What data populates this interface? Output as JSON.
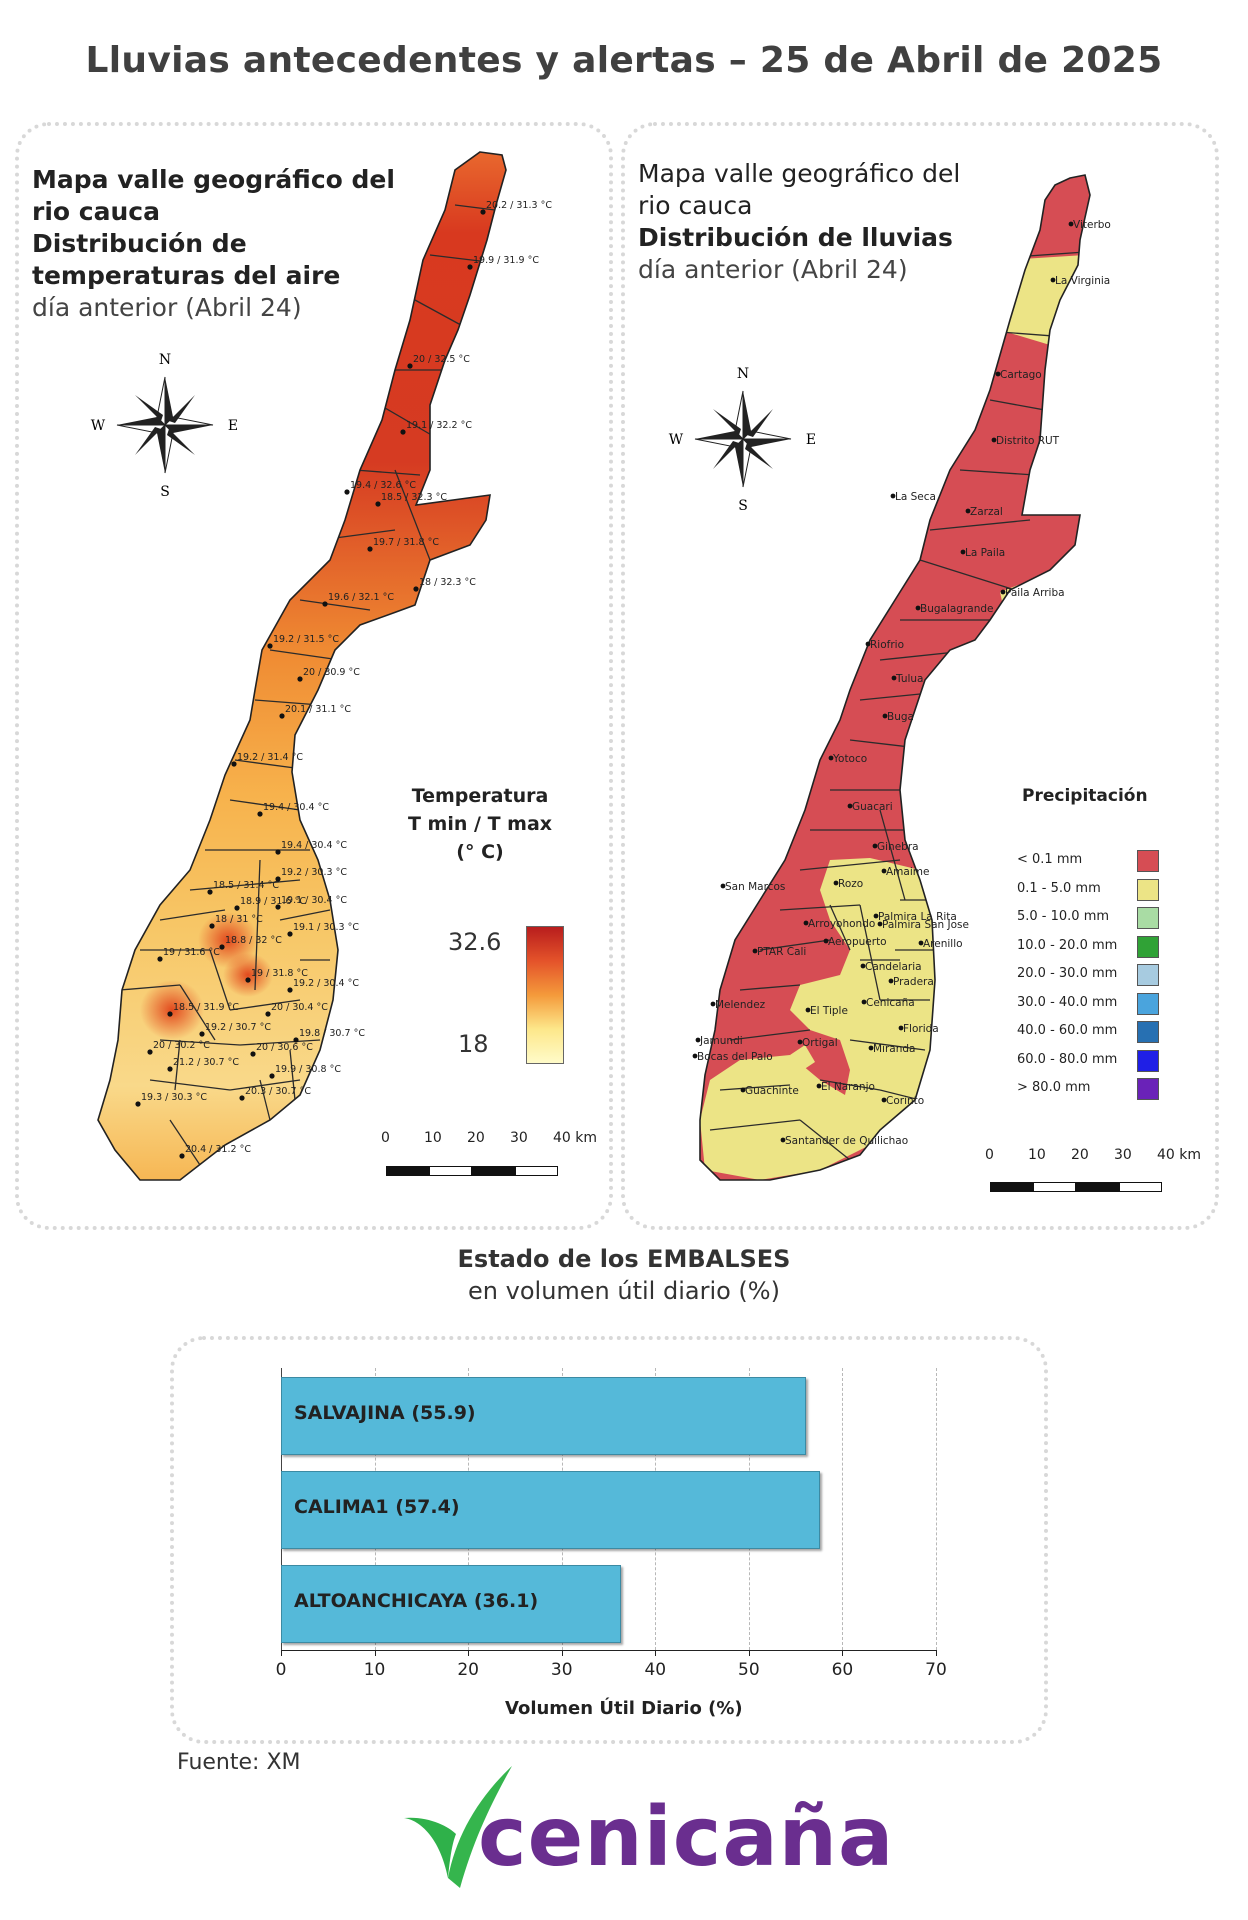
{
  "title": "Lluvias antecedentes y alertas – 25 de Abril de 2025",
  "temp_map": {
    "title_line1": "Mapa valle geográfico del",
    "title_line2": "rio cauca",
    "subtitle_line1": "Distribución de",
    "subtitle_line2": "temperaturas del aire",
    "date_note": "día anterior (Abril 24)",
    "legend": {
      "title_line1": "Temperatura",
      "title_line2": "T min / T max",
      "title_line3": "(° C)",
      "max": "32.6",
      "min": "18",
      "colors": [
        "#b81d1d",
        "#e4532a",
        "#f49a3b",
        "#fde78a",
        "#fffbc9"
      ]
    },
    "stations": [
      "20.2 / 31.3 °C",
      "19.9 / 31.9 °C",
      "20 / 32.5 °C",
      "19.1 / 32.2 °C",
      "19.4 / 32.6 °C",
      "18.5 / 32.3 °C",
      "19.7 / 31.8 °C",
      "18 / 32.3 °C",
      "19.6 / 32.1 °C",
      "19.2 / 31.5 °C",
      "20 / 30.9 °C",
      "20.1 / 31.1 °C",
      "19.2 / 31.4 °C",
      "19.4 / 30.4 °C",
      "19.4 / 30.4 °C",
      "19.2 / 30.3 °C",
      "18.5 / 31.4 °C",
      "18.9 / 31.6 °C",
      "19.1 / 30.4 °C",
      "18 / 31 °C",
      "18.8 / 32 °C",
      "19.1 / 30.3 °C",
      "19 / 31.6 °C",
      "19 / 31.8 °C",
      "19.2 / 30.4 °C",
      "18.5 / 31.9 °C",
      "20 / 30.4 °C",
      "19.2 / 30.7 °C",
      "19.8 / 30.7 °C",
      "20 / 30.2 °C",
      "21.2 / 30.7 °C",
      "20 / 30.6 °C",
      "19.9 / 30.8 °C",
      "19.3 / 30.3 °C",
      "20.3 / 30.7 °C",
      "20.4 / 31.2 °C"
    ],
    "scale_ticks": [
      "0",
      "10",
      "20",
      "30",
      "40 km"
    ]
  },
  "rain_map": {
    "title_line1": "Mapa valle geográfico del",
    "title_line2": "rio cauca",
    "subtitle": "Distribución de lluvias",
    "date_note": "día anterior (Abril 24)",
    "legend_title": "Precipitación",
    "legend": [
      {
        "label": "< 0.1 mm",
        "color": "#d64d54"
      },
      {
        "label": "0.1 - 5.0 mm",
        "color": "#ece486"
      },
      {
        "label": "5.0 - 10.0 mm",
        "color": "#a9dca4"
      },
      {
        "label": "10.0 - 20.0 mm",
        "color": "#30a236"
      },
      {
        "label": "20.0 - 30.0 mm",
        "color": "#a7cbe0"
      },
      {
        "label": "30.0 - 40.0 mm",
        "color": "#4aa4dd"
      },
      {
        "label": "40.0 - 60.0 mm",
        "color": "#2770b2"
      },
      {
        "label": "60.0 - 80.0 mm",
        "color": "#1f1fe6"
      },
      {
        "label": "> 80.0 mm",
        "color": "#6a22b8"
      }
    ],
    "places": [
      "Viterbo",
      "La Virginia",
      "Cartago",
      "Distrito RUT",
      "La Seca",
      "Zarzal",
      "La Paila",
      "Paila Arriba",
      "Bugalagrande",
      "Riofrio",
      "Tulua",
      "Buga",
      "Yotoco",
      "Guacari",
      "Ginebra",
      "Amaime",
      "San Marcos",
      "Rozo",
      "Palmira La Rita",
      "Arroyohondo",
      "Palmira San Jose",
      "Aeropuerto",
      "Arenillo",
      "PTAR Cali",
      "Candelaria",
      "Pradera",
      "Cenicaña",
      "Melendez",
      "El Tiple",
      "Florida",
      "Jamundi",
      "Bocas del Palo",
      "Ortigal",
      "Miranda",
      "Guachinte",
      "El Naranjo",
      "Corinto",
      "Santander de Quilichao"
    ],
    "scale_ticks": [
      "0",
      "10",
      "20",
      "30",
      "40 km"
    ]
  },
  "compass": {
    "n": "N",
    "s": "S",
    "e": "E",
    "w": "W"
  },
  "reservoirs": {
    "title_bold": "Estado de los EMBALSES",
    "title_normal": "en volumen útil diario (%)",
    "xlabel": "Volumen Útil Diario (%)"
  },
  "chart_data": {
    "type": "bar",
    "orientation": "horizontal",
    "categories": [
      "SALVAJINA (55.9)",
      "CALIMA1 (57.4)",
      "ALTOANCHICAYA (36.1)"
    ],
    "values": [
      55.9,
      57.4,
      36.1
    ],
    "xlabel": "Volumen Útil Diario (%)",
    "xlim": [
      0,
      70
    ],
    "xticks": [
      "0",
      "10",
      "20",
      "30",
      "40",
      "50",
      "60",
      "70"
    ],
    "color": "#55b9d9",
    "grid": "vertical dashed"
  },
  "source": "Fuente: XM",
  "brand": "cenicaña",
  "brand_colors": {
    "leaf": "#2fb14a",
    "text": "#6a2e8f"
  }
}
